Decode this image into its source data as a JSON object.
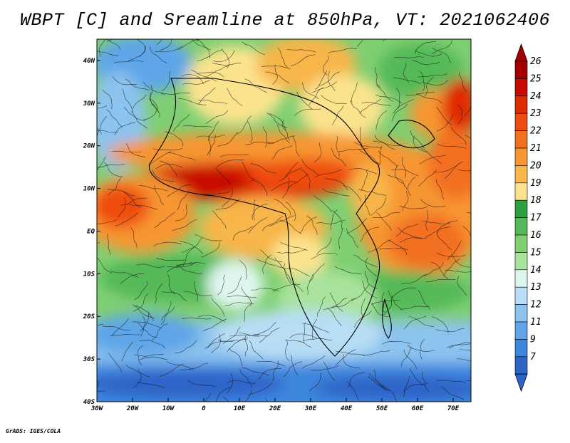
{
  "title": "WBPT [C] and Sreamline at 850hPa, VT: 2021062406",
  "credit": "GrADS: IGES/COLA",
  "map": {
    "type": "filled-contour-map-with-streamlines",
    "variable": "WBPT",
    "units": "C",
    "level": "850hPa",
    "valid_time": "2021062406",
    "lon_range": [
      -30,
      75
    ],
    "lat_range": [
      -40,
      45
    ],
    "lon_labels": [
      "30W",
      "20W",
      "10W",
      "0",
      "10E",
      "20E",
      "30E",
      "40E",
      "50E",
      "60E",
      "70E"
    ],
    "lon_values": [
      -30,
      -20,
      -10,
      0,
      10,
      20,
      30,
      40,
      50,
      60,
      70
    ],
    "lat_labels": [
      "40N",
      "30N",
      "20N",
      "10N",
      "EQ",
      "10S",
      "20S",
      "30S",
      "40S"
    ],
    "lat_values": [
      40,
      30,
      20,
      10,
      0,
      -10,
      -20,
      -30,
      -40
    ]
  },
  "colorbar": {
    "levels": [
      "26",
      "25",
      "24",
      "23",
      "22",
      "21",
      "20",
      "19",
      "18",
      "17",
      "16",
      "15",
      "14",
      "13",
      "12",
      "11",
      "9",
      "7"
    ],
    "colors": [
      "#a50000",
      "#c80a00",
      "#e02a00",
      "#ef4d10",
      "#f37020",
      "#f79530",
      "#f8b54a",
      "#fbe38e",
      "#2ea043",
      "#54b958",
      "#7fcf72",
      "#a9e39b",
      "#dff6ee",
      "#b7def5",
      "#8cc3ef",
      "#5fa6e8",
      "#3d86de",
      "#2e64c8"
    ],
    "end_top": "#a50000",
    "end_bottom": "#2e64c8"
  }
}
